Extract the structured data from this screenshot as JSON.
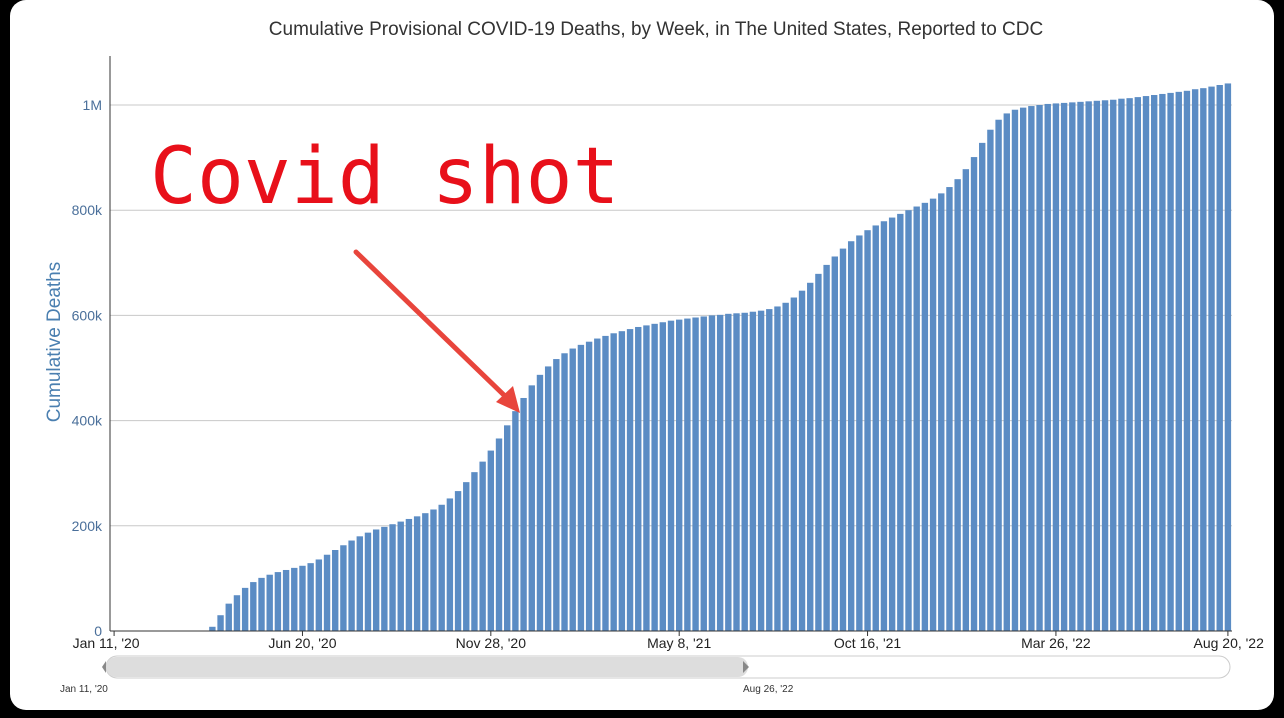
{
  "chart_data": {
    "type": "bar",
    "title": "Cumulative Provisional COVID-19 Deaths, by Week, in The United States, Reported to CDC",
    "ylabel": "Cumulative Deaths",
    "xlabel": "",
    "ylim": [
      0,
      1100000
    ],
    "y_ticks": [
      {
        "value": 0,
        "label": "0"
      },
      {
        "value": 200000,
        "label": "200k"
      },
      {
        "value": 400000,
        "label": "400k"
      },
      {
        "value": 600000,
        "label": "600k"
      },
      {
        "value": 800000,
        "label": "800k"
      },
      {
        "value": 1000000,
        "label": "1M"
      }
    ],
    "x_ticks": [
      {
        "index": 0,
        "label": "Jan 11, '20"
      },
      {
        "index": 23,
        "label": "Jun 20, '20"
      },
      {
        "index": 46,
        "label": "Nov 28, '20"
      },
      {
        "index": 69,
        "label": "May 8, '21"
      },
      {
        "index": 92,
        "label": "Oct 16, '21"
      },
      {
        "index": 115,
        "label": "Mar 26, '22"
      },
      {
        "index": 136,
        "label": "Aug 20, '22"
      }
    ],
    "x_start": "Jan 11, '20",
    "x_end": "Aug 20, '22",
    "grid": true,
    "color": "#5b8cc4",
    "values": [
      0,
      0,
      0,
      0,
      0,
      0,
      0,
      0,
      0,
      0,
      0,
      500,
      8000,
      30000,
      52000,
      68000,
      82000,
      93000,
      101000,
      107000,
      112000,
      116000,
      120000,
      124000,
      129000,
      136000,
      145000,
      154000,
      163000,
      172000,
      180000,
      187000,
      193000,
      198000,
      203000,
      208000,
      213000,
      218000,
      224000,
      231000,
      240000,
      252000,
      266000,
      283000,
      302000,
      322000,
      343000,
      366000,
      391000,
      418000,
      443000,
      467000,
      487000,
      503000,
      517000,
      528000,
      537000,
      544000,
      550000,
      556000,
      561000,
      566000,
      570000,
      574000,
      578000,
      581000,
      584000,
      587000,
      590000,
      592000,
      594000,
      596000,
      598000,
      600000,
      601000,
      603000,
      604000,
      605000,
      607000,
      609000,
      612000,
      617000,
      624000,
      634000,
      647000,
      662000,
      679000,
      696000,
      712000,
      727000,
      741000,
      752000,
      762000,
      771000,
      779000,
      786000,
      793000,
      800000,
      807000,
      814000,
      822000,
      832000,
      844000,
      859000,
      878000,
      901000,
      928000,
      953000,
      972000,
      984000,
      991000,
      995000,
      998000,
      1000000,
      1002000,
      1003000,
      1004000,
      1005000,
      1006000,
      1007000,
      1008000,
      1009000,
      1010000,
      1012000,
      1013000,
      1015000,
      1017000,
      1019000,
      1021000,
      1023000,
      1025000,
      1027000,
      1030000,
      1032000,
      1035000,
      1038000,
      1041000
    ]
  },
  "annotation": {
    "text": "Covid shot",
    "color": "#e8101a",
    "arrow_color": "#e8453c"
  },
  "navigator": {
    "start_label": "Jan 11, '20",
    "end_label": "Aug 26, '22"
  }
}
